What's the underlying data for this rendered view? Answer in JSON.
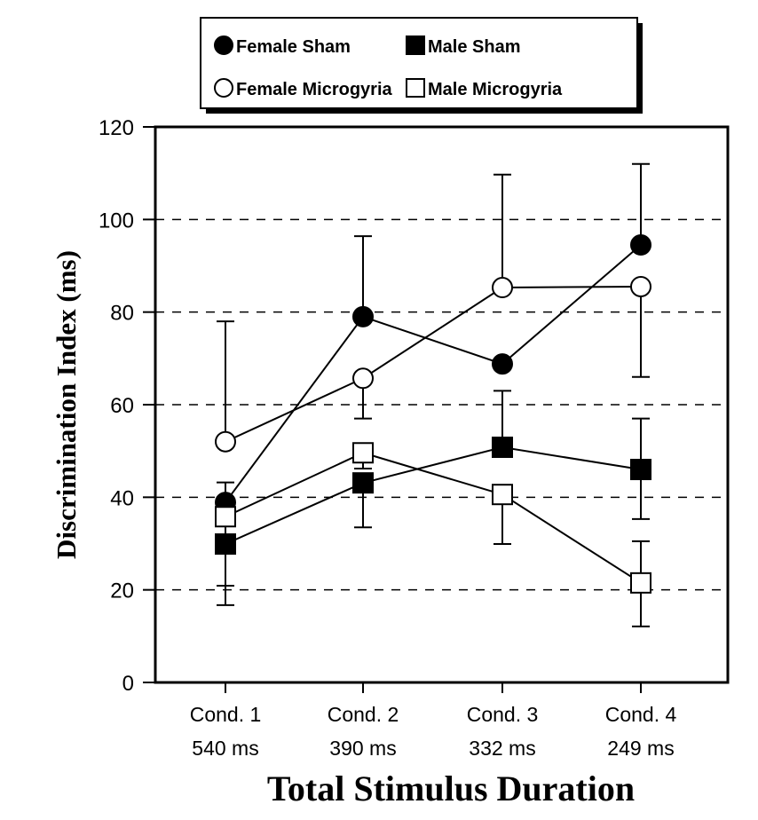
{
  "chart_data": {
    "type": "line",
    "xlabel": "Total Stimulus Duration",
    "ylabel": "Discrimination Index (ms)",
    "ylim": [
      0,
      120
    ],
    "yticks": [
      "0",
      "20",
      "40",
      "60",
      "80",
      "100",
      "120"
    ],
    "grid": "horizontal dashed",
    "legend_placement": "top",
    "categories": [
      {
        "line1": "Cond. 1",
        "line2": "540 ms"
      },
      {
        "line1": "Cond. 2",
        "line2": "390 ms"
      },
      {
        "line1": "Cond. 3",
        "line2": "332 ms"
      },
      {
        "line1": "Cond. 4",
        "line2": "249 ms"
      }
    ],
    "series": [
      {
        "name": "Female Sham",
        "marker": "circle",
        "fill": "#000000",
        "values": [
          38.9,
          79.0,
          68.8,
          94.5
        ],
        "err_upper": [
          43.2,
          96.4,
          null,
          112.0
        ],
        "err_lower": [
          null,
          null,
          null,
          null
        ]
      },
      {
        "name": "Male Sham",
        "marker": "square",
        "fill": "#000000",
        "values": [
          29.9,
          43.1,
          50.8,
          46.0
        ],
        "err_upper": [
          null,
          null,
          63.0,
          57.0
        ],
        "err_lower": [
          16.7,
          33.5,
          null,
          35.3
        ]
      },
      {
        "name": "Female Microgyria",
        "marker": "circle",
        "fill": "#ffffff",
        "values": [
          52.0,
          65.7,
          85.3,
          85.5
        ],
        "err_upper": [
          78.0,
          null,
          109.7,
          null
        ],
        "err_lower": [
          null,
          57.0,
          null,
          66.0
        ]
      },
      {
        "name": "Male Microgyria",
        "marker": "square",
        "fill": "#ffffff",
        "values": [
          35.8,
          49.6,
          40.6,
          21.5
        ],
        "err_upper": [
          null,
          null,
          null,
          30.5
        ],
        "err_lower": [
          20.9,
          46.2,
          29.9,
          12.1
        ]
      }
    ]
  }
}
